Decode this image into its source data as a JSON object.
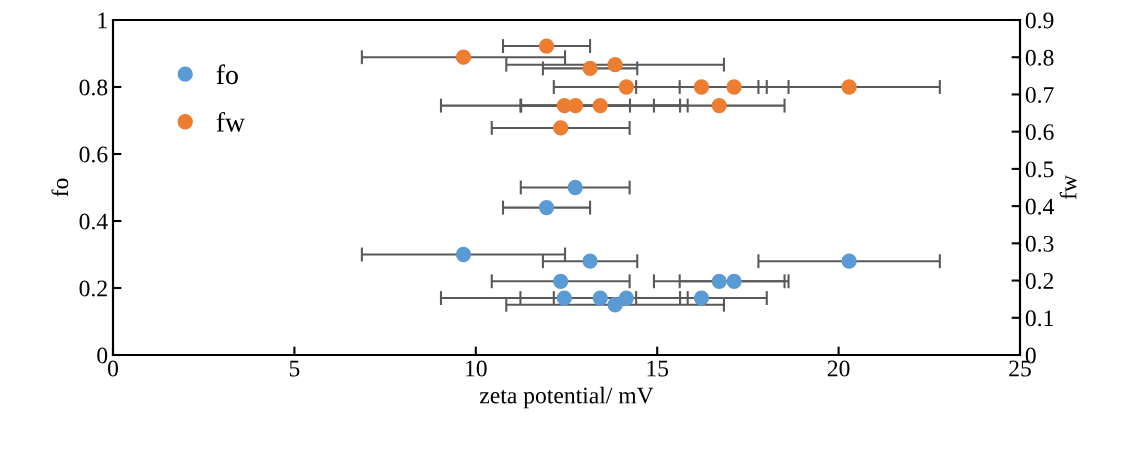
{
  "chart_data": {
    "type": "scatter",
    "xlabel": "zeta potential/ mV",
    "ylabel": "fo",
    "y2label": "fw",
    "xlim": [
      0,
      25
    ],
    "xticks": [
      0,
      5,
      10,
      15,
      20,
      25
    ],
    "ylim": [
      0,
      1
    ],
    "yticks": [
      0,
      {
        "value": 0.2,
        "label": "0.2"
      },
      {
        "value": 0.4,
        "label": "0.4"
      },
      {
        "value": 0.6,
        "label": "0.6"
      },
      {
        "value": 0.8,
        "label": "0.8"
      },
      1
    ],
    "y2lim": [
      0,
      0.9
    ],
    "y2ticks": [
      0,
      0.1,
      0.2,
      0.3,
      0.4,
      0.5,
      0.6,
      0.7,
      0.8,
      0.9
    ],
    "marker": "circle",
    "legend": "top left",
    "grid": false,
    "series": [
      {
        "name": "fo",
        "color": "#5b9bd5",
        "x": [
          12.74,
          11.95,
          9.66,
          13.15,
          20.29,
          12.34,
          16.71,
          17.12,
          12.44,
          13.43,
          14.15,
          16.22,
          13.84
        ],
        "values": [
          0.5,
          0.44,
          0.3,
          0.28,
          0.28,
          0.22,
          0.22,
          0.22,
          0.17,
          0.17,
          0.17,
          0.17,
          0.15
        ],
        "xerrors": [
          1.5,
          1.2,
          2.8,
          1.3,
          2.5,
          1.9,
          1.8,
          1.5,
          3.4,
          2.2,
          2.0,
          1.8,
          3.0
        ]
      },
      {
        "name": "fw",
        "color": "#ed7d31",
        "axis": "y2",
        "x": [
          11.95,
          9.66,
          13.15,
          13.84,
          14.15,
          16.22,
          17.12,
          20.29,
          12.44,
          12.75,
          13.43,
          16.71,
          12.34
        ],
        "values": [
          0.83,
          0.8,
          0.77,
          0.78,
          0.72,
          0.72,
          0.72,
          0.72,
          0.67,
          0.67,
          0.67,
          0.67,
          0.61
        ],
        "xerrors": [
          1.2,
          2.8,
          1.3,
          3.0,
          2.0,
          1.8,
          1.5,
          2.5,
          3.4,
          1.5,
          2.2,
          1.8,
          1.9
        ]
      }
    ]
  }
}
